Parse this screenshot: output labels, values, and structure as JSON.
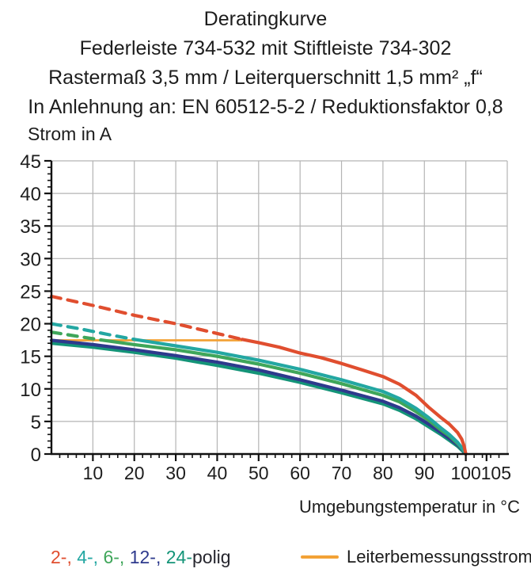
{
  "header": {
    "title_lines": [
      "Deratingkurve",
      "Federleiste 734-532 mit Stiftleiste 734-302",
      "Rastermaß 3,5 mm / Leiterquerschnitt 1,5 mm² „f“",
      "In Anlehnung an: EN 60512-5-2 / Reduktionsfaktor 0,8"
    ]
  },
  "axes": {
    "y_label": "Strom in A",
    "x_label": "Umgebungstemperatur in °C"
  },
  "legend": {
    "poles_parts": [
      {
        "text": "2-, ",
        "color": "#e04e2f"
      },
      {
        "text": "4-, ",
        "color": "#23a7a2"
      },
      {
        "text": "6-, ",
        "color": "#3fa65a"
      },
      {
        "text": "12-, ",
        "color": "#2e3a8d"
      },
      {
        "text": "24-",
        "color": "#149478"
      },
      {
        "text": "polig",
        "color": "#26262e"
      }
    ],
    "reference_label": "Leiterbemessungsstrom"
  },
  "chart_data": {
    "type": "line",
    "title": "Deratingkurve",
    "xlabel": "Umgebungstemperatur in °C",
    "ylabel": "Strom in A",
    "xlim": [
      0,
      110
    ],
    "ylim": [
      0,
      45
    ],
    "x_ticks_labeled": [
      10,
      20,
      30,
      40,
      50,
      60,
      70,
      80,
      90,
      100,
      105
    ],
    "y_ticks_labeled": [
      0,
      5,
      10,
      15,
      20,
      25,
      30,
      35,
      40,
      45
    ],
    "x_grid_step": 10,
    "y_grid_step": 5,
    "x_minor_tick_step": 2,
    "y_minor_tick_step": 1,
    "grid": true,
    "grid_color": "#b4b4b4",
    "axis_color": "#111111",
    "legend_position": "bottom",
    "series": [
      {
        "name": "2-polig",
        "color": "#e04e2f",
        "dashed": [
          [
            0,
            24.2
          ],
          [
            10,
            22.8
          ],
          [
            20,
            21.3
          ],
          [
            30,
            20.0
          ],
          [
            40,
            18.5
          ],
          [
            46,
            17.6
          ]
        ],
        "solid": [
          [
            46,
            17.6
          ],
          [
            50,
            17.1
          ],
          [
            55,
            16.4
          ],
          [
            60,
            15.5
          ],
          [
            65,
            14.8
          ],
          [
            70,
            13.9
          ],
          [
            75,
            12.9
          ],
          [
            80,
            11.9
          ],
          [
            84,
            10.7
          ],
          [
            88,
            9.0
          ],
          [
            91,
            7.2
          ],
          [
            94,
            5.6
          ],
          [
            96,
            4.6
          ],
          [
            98,
            3.3
          ],
          [
            99,
            2.3
          ],
          [
            99.6,
            1.2
          ],
          [
            100,
            0
          ]
        ]
      },
      {
        "name": "4-polig",
        "color": "#23a7a2",
        "dashed": [
          [
            0,
            20.0
          ],
          [
            7,
            19.2
          ],
          [
            14,
            18.3
          ],
          [
            20,
            17.6
          ]
        ],
        "solid": [
          [
            20,
            17.6
          ],
          [
            25,
            17.1
          ],
          [
            30,
            16.6
          ],
          [
            40,
            15.6
          ],
          [
            50,
            14.4
          ],
          [
            60,
            13.0
          ],
          [
            70,
            11.4
          ],
          [
            80,
            9.6
          ],
          [
            84,
            8.5
          ],
          [
            88,
            7.0
          ],
          [
            91,
            5.6
          ],
          [
            94,
            4.0
          ],
          [
            96,
            3.0
          ],
          [
            98,
            1.8
          ],
          [
            99,
            1.0
          ],
          [
            99.6,
            0.5
          ],
          [
            100,
            0
          ]
        ]
      },
      {
        "name": "6-polig",
        "color": "#3fa65a",
        "dashed": [
          [
            0,
            18.7
          ],
          [
            6,
            18.1
          ],
          [
            12,
            17.5
          ]
        ],
        "solid": [
          [
            12,
            17.5
          ],
          [
            20,
            16.8
          ],
          [
            30,
            16.0
          ],
          [
            40,
            15.0
          ],
          [
            50,
            13.8
          ],
          [
            60,
            12.4
          ],
          [
            70,
            10.8
          ],
          [
            80,
            9.0
          ],
          [
            84,
            8.0
          ],
          [
            88,
            6.5
          ],
          [
            91,
            5.2
          ],
          [
            94,
            3.7
          ],
          [
            96,
            2.8
          ],
          [
            98,
            1.6
          ],
          [
            99,
            0.9
          ],
          [
            99.6,
            0.4
          ],
          [
            100,
            0
          ]
        ]
      },
      {
        "name": "12-polig",
        "color": "#2e3a8d",
        "solid": [
          [
            0,
            17.45
          ],
          [
            10,
            16.8
          ],
          [
            20,
            16.0
          ],
          [
            30,
            15.1
          ],
          [
            40,
            14.1
          ],
          [
            50,
            12.9
          ],
          [
            60,
            11.4
          ],
          [
            70,
            9.8
          ],
          [
            80,
            8.1
          ],
          [
            84,
            7.1
          ],
          [
            88,
            5.8
          ],
          [
            91,
            4.6
          ],
          [
            94,
            3.3
          ],
          [
            96,
            2.4
          ],
          [
            98,
            1.4
          ],
          [
            99,
            0.8
          ],
          [
            99.6,
            0.3
          ],
          [
            100,
            0
          ]
        ]
      },
      {
        "name": "24-polig",
        "color": "#149478",
        "solid": [
          [
            0,
            17.0
          ],
          [
            10,
            16.4
          ],
          [
            20,
            15.6
          ],
          [
            30,
            14.7
          ],
          [
            40,
            13.6
          ],
          [
            50,
            12.4
          ],
          [
            60,
            11.0
          ],
          [
            70,
            9.4
          ],
          [
            80,
            7.7
          ],
          [
            84,
            6.7
          ],
          [
            88,
            5.4
          ],
          [
            91,
            4.2
          ],
          [
            94,
            3.0
          ],
          [
            96,
            2.1
          ],
          [
            98,
            1.2
          ],
          [
            99,
            0.6
          ],
          [
            99.6,
            0.25
          ],
          [
            100,
            0
          ]
        ]
      }
    ],
    "reference_line": {
      "name": "Leiterbemessungsstrom",
      "color": "#f3a236",
      "points": [
        [
          0,
          17.45
        ],
        [
          46,
          17.45
        ]
      ]
    }
  }
}
